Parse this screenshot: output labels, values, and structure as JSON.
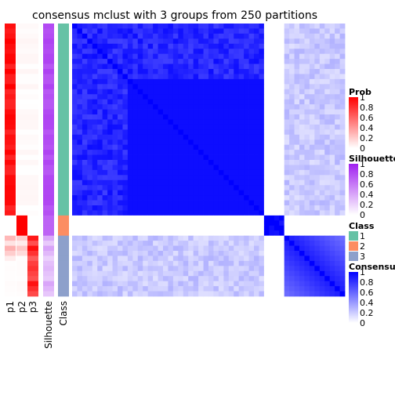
{
  "chart_data": {
    "type": "heatmap",
    "title": "consensus mclust with 3 groups from 250 partitions",
    "columns": [
      "p1",
      "p2",
      "p3",
      "Silhouette",
      "Class"
    ],
    "groups": [
      {
        "class": 1,
        "n": 38,
        "mean_consensus": 0.85
      },
      {
        "class": 2,
        "n": 4,
        "mean_consensus": 1.0
      },
      {
        "class": 3,
        "n": 12,
        "mean_consensus": 0.55
      }
    ],
    "colors": {
      "prob": "#ff0000",
      "silhouette": "#a020f0",
      "consensus": "#0000ff",
      "class_1": "#66c2a5",
      "class_2": "#fc8d62",
      "class_3": "#8da0cb"
    },
    "legends": [
      {
        "title": "Prob",
        "kind": "gradient",
        "from": "#ffffff",
        "to": "#ff0000",
        "ticks": [
          "1",
          "0.8",
          "0.6",
          "0.4",
          "0.2",
          "0"
        ]
      },
      {
        "title": "Silhouette",
        "kind": "gradient",
        "from": "#ffffff",
        "to": "#a020f0",
        "ticks": [
          "1",
          "0.8",
          "0.6",
          "0.4",
          "0.2",
          "0"
        ]
      },
      {
        "title": "Class",
        "kind": "discrete",
        "items": [
          {
            "label": "1",
            "color": "#66c2a5"
          },
          {
            "label": "2",
            "color": "#fc8d62"
          },
          {
            "label": "3",
            "color": "#8da0cb"
          }
        ]
      },
      {
        "title": "Consensus",
        "kind": "gradient",
        "from": "#ffffff",
        "to": "#0000ff",
        "ticks": [
          "1",
          "0.8",
          "0.6",
          "0.4",
          "0.2",
          "0"
        ]
      }
    ]
  }
}
